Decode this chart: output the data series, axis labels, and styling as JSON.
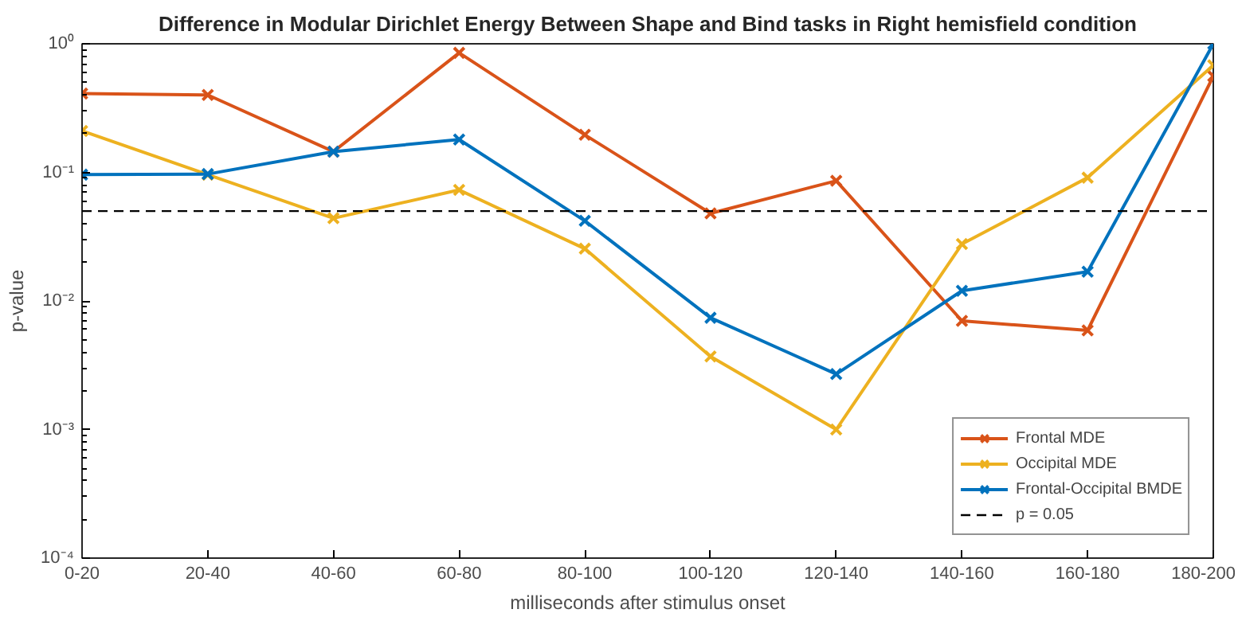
{
  "chart_data": {
    "type": "line",
    "title": "Difference in Modular Dirichlet Energy Between Shape and Bind tasks in Right hemisfield condition",
    "xlabel": "milliseconds after stimulus onset",
    "ylabel": "p-value",
    "categories": [
      "0-20",
      "20-40",
      "40-60",
      "60-80",
      "80-100",
      "100-120",
      "120-140",
      "140-160",
      "160-180",
      "180-200"
    ],
    "series": [
      {
        "name": "Frontal MDE",
        "color": "#d95319",
        "values": [
          0.41,
          0.4,
          0.145,
          0.85,
          0.196,
          0.048,
          0.086,
          0.007,
          0.0059,
          0.56
        ]
      },
      {
        "name": "Occipital MDE",
        "color": "#edb120",
        "values": [
          0.21,
          0.096,
          0.044,
          0.073,
          0.0255,
          0.0037,
          0.001,
          0.0277,
          0.091,
          0.68
        ]
      },
      {
        "name": "Frontal-Occipital BMDE",
        "color": "#0072bd",
        "values": [
          0.096,
          0.097,
          0.145,
          0.18,
          0.042,
          0.0074,
          0.0027,
          0.012,
          0.0169,
          1.0
        ]
      }
    ],
    "ref_lines": [
      {
        "axis": "y",
        "value": 0.05,
        "label": "p = 0.05",
        "color": "#000000",
        "line_style": "dashed"
      }
    ],
    "log": "y",
    "ylim": [
      0.0001,
      1
    ],
    "yticks": [
      {
        "value": 0.0001,
        "label": "10⁻⁴"
      },
      {
        "value": 0.001,
        "label": "10⁻³"
      },
      {
        "value": 0.01,
        "label": "10⁻²"
      },
      {
        "value": 0.1,
        "label": "10⁻¹"
      },
      {
        "value": 1,
        "label": "10⁰"
      }
    ],
    "marker": "cross",
    "line_style": "solid",
    "legend": "bottom right",
    "grid": false
  }
}
